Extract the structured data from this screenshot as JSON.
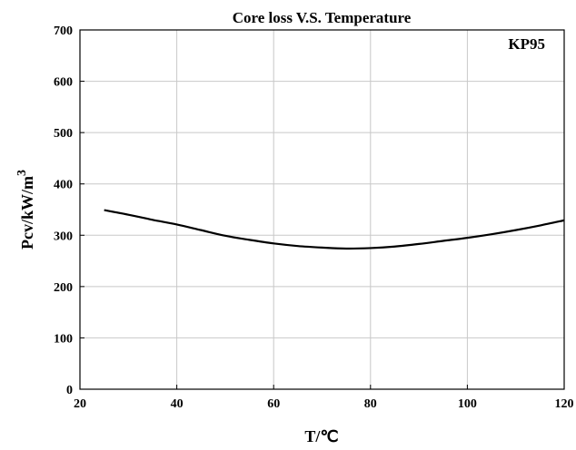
{
  "chart_data": {
    "type": "line",
    "title": "Core loss V.S. Temperature",
    "xlabel": "T/℃",
    "ylabel_main": "Pcv/kW/m",
    "ylabel_sup": "3",
    "annotation": "KP95",
    "xlim": [
      20,
      120
    ],
    "ylim": [
      0,
      700
    ],
    "xticks": [
      20,
      40,
      60,
      80,
      100,
      120
    ],
    "yticks": [
      0,
      100,
      200,
      300,
      400,
      500,
      600,
      700
    ],
    "grid": true,
    "series": [
      {
        "color": "#000000",
        "x": [
          25,
          30,
          35,
          40,
          45,
          50,
          55,
          60,
          65,
          70,
          75,
          80,
          85,
          90,
          95,
          100,
          105,
          110,
          115,
          120
        ],
        "y": [
          349,
          340,
          330,
          321,
          310,
          299,
          291,
          284,
          279,
          276,
          274,
          275,
          278,
          283,
          289,
          295,
          302,
          310,
          319,
          329
        ]
      }
    ]
  }
}
